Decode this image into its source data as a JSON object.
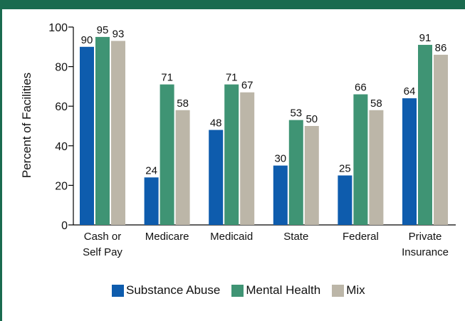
{
  "frame": {
    "accent_color": "#1a6b4f"
  },
  "chart_data": {
    "type": "bar",
    "title": "",
    "xlabel": "",
    "ylabel": "Percent of Facilities",
    "ylim": [
      0,
      100
    ],
    "yticks": [
      0,
      20,
      40,
      60,
      80,
      100
    ],
    "categories": [
      [
        "Cash or",
        "Self Pay"
      ],
      [
        "Medicare"
      ],
      [
        "Medicaid"
      ],
      [
        "State"
      ],
      [
        "Federal"
      ],
      [
        "Private",
        "Insurance"
      ]
    ],
    "series": [
      {
        "name": "Substance Abuse",
        "color": "#0e5cad",
        "values": [
          90,
          24,
          48,
          30,
          25,
          64
        ]
      },
      {
        "name": "Mental Health",
        "color": "#3f9474",
        "values": [
          95,
          71,
          71,
          53,
          66,
          91
        ]
      },
      {
        "name": "Mix",
        "color": "#bcb6a8",
        "values": [
          93,
          58,
          67,
          50,
          58,
          86
        ]
      }
    ],
    "grid": false,
    "legend_position": "bottom"
  }
}
